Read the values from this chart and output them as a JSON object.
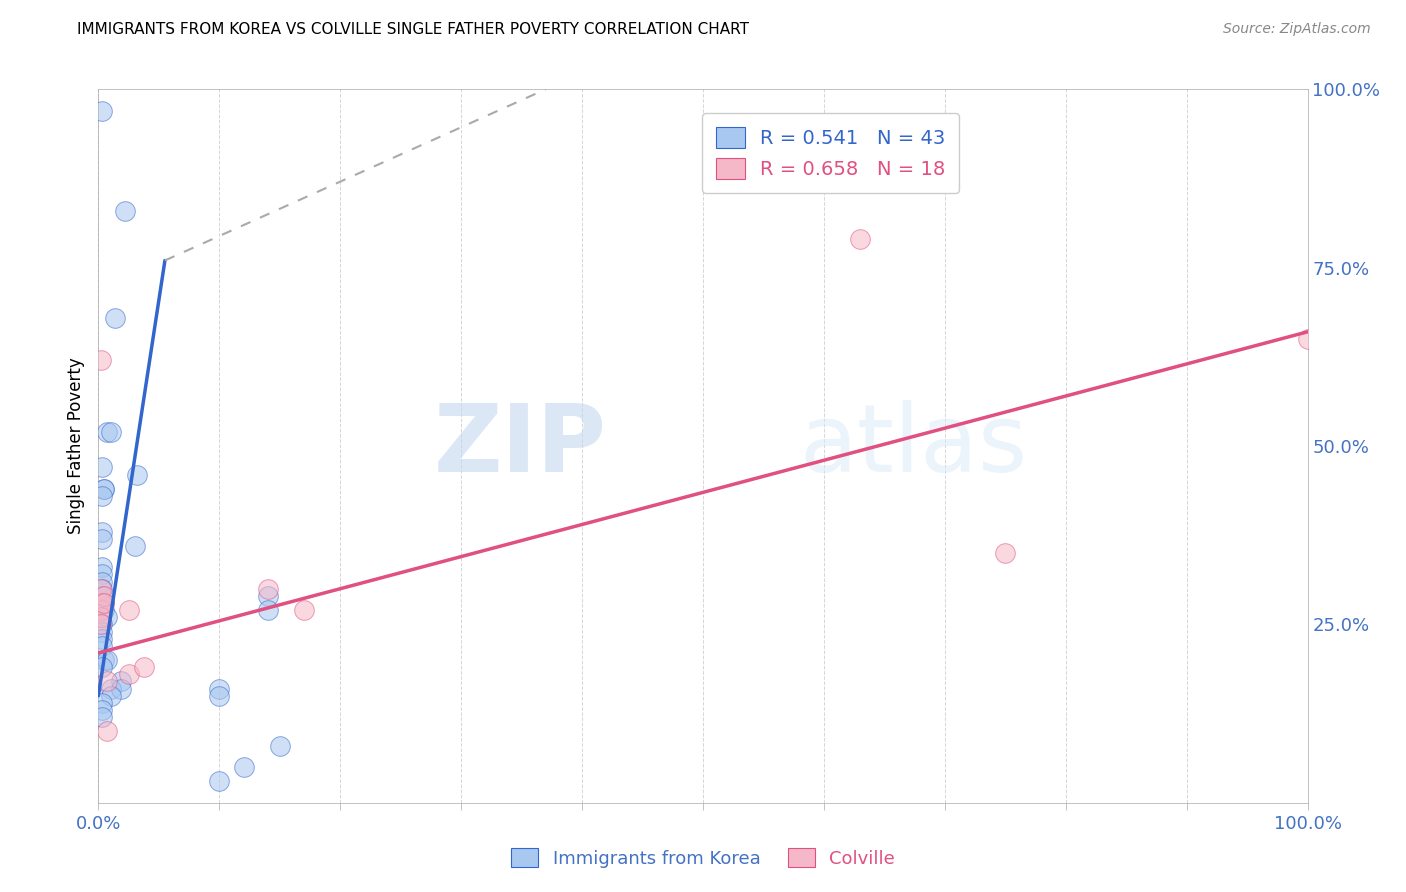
{
  "title": "IMMIGRANTS FROM KOREA VS COLVILLE SINGLE FATHER POVERTY CORRELATION CHART",
  "source": "Source: ZipAtlas.com",
  "ylabel_label": "Single Father Poverty",
  "legend_blue": {
    "R": "0.541",
    "N": "43",
    "label": "Immigrants from Korea"
  },
  "legend_pink": {
    "R": "0.658",
    "N": "18",
    "label": "Colville"
  },
  "blue_scatter": [
    [
      0.003,
      0.97
    ],
    [
      0.022,
      0.83
    ],
    [
      0.014,
      0.68
    ],
    [
      0.007,
      0.52
    ],
    [
      0.01,
      0.52
    ],
    [
      0.003,
      0.47
    ],
    [
      0.032,
      0.46
    ],
    [
      0.005,
      0.44
    ],
    [
      0.005,
      0.44
    ],
    [
      0.003,
      0.43
    ],
    [
      0.003,
      0.38
    ],
    [
      0.003,
      0.37
    ],
    [
      0.03,
      0.36
    ],
    [
      0.003,
      0.33
    ],
    [
      0.003,
      0.32
    ],
    [
      0.003,
      0.31
    ],
    [
      0.003,
      0.3
    ],
    [
      0.003,
      0.29
    ],
    [
      0.003,
      0.28
    ],
    [
      0.005,
      0.28
    ],
    [
      0.005,
      0.27
    ],
    [
      0.007,
      0.26
    ],
    [
      0.003,
      0.25
    ],
    [
      0.003,
      0.24
    ],
    [
      0.003,
      0.23
    ],
    [
      0.003,
      0.22
    ],
    [
      0.005,
      0.2
    ],
    [
      0.007,
      0.2
    ],
    [
      0.003,
      0.19
    ],
    [
      0.019,
      0.17
    ],
    [
      0.01,
      0.16
    ],
    [
      0.019,
      0.16
    ],
    [
      0.01,
      0.15
    ],
    [
      0.003,
      0.14
    ],
    [
      0.003,
      0.13
    ],
    [
      0.003,
      0.12
    ],
    [
      0.1,
      0.16
    ],
    [
      0.1,
      0.15
    ],
    [
      0.14,
      0.29
    ],
    [
      0.14,
      0.27
    ],
    [
      0.15,
      0.08
    ],
    [
      0.12,
      0.05
    ],
    [
      0.1,
      0.03
    ]
  ],
  "pink_scatter": [
    [
      0.002,
      0.62
    ],
    [
      0.002,
      0.3
    ],
    [
      0.002,
      0.28
    ],
    [
      0.002,
      0.27
    ],
    [
      0.002,
      0.26
    ],
    [
      0.002,
      0.25
    ],
    [
      0.005,
      0.29
    ],
    [
      0.005,
      0.28
    ],
    [
      0.007,
      0.17
    ],
    [
      0.007,
      0.1
    ],
    [
      0.025,
      0.27
    ],
    [
      0.025,
      0.18
    ],
    [
      0.038,
      0.19
    ],
    [
      0.14,
      0.3
    ],
    [
      0.17,
      0.27
    ],
    [
      0.63,
      0.79
    ],
    [
      0.75,
      0.35
    ],
    [
      1.0,
      0.65
    ]
  ],
  "blue_line_solid": [
    [
      0.0,
      0.15
    ],
    [
      0.055,
      0.76
    ]
  ],
  "blue_line_dashed": [
    [
      0.055,
      0.76
    ],
    [
      0.37,
      1.0
    ]
  ],
  "pink_line": [
    [
      0.0,
      0.21
    ],
    [
      1.0,
      0.66
    ]
  ],
  "xlim": [
    0.0,
    1.0
  ],
  "ylim": [
    0.0,
    1.0
  ],
  "blue_color": "#a8c8f0",
  "blue_line_color": "#3366cc",
  "pink_color": "#f5b8c8",
  "pink_line_color": "#e05080",
  "background_color": "#ffffff",
  "grid_color": "#cccccc",
  "title_fontsize": 11,
  "axis_label_color": "#4472c4",
  "watermark_text": "ZIP",
  "watermark_text2": "atlas"
}
